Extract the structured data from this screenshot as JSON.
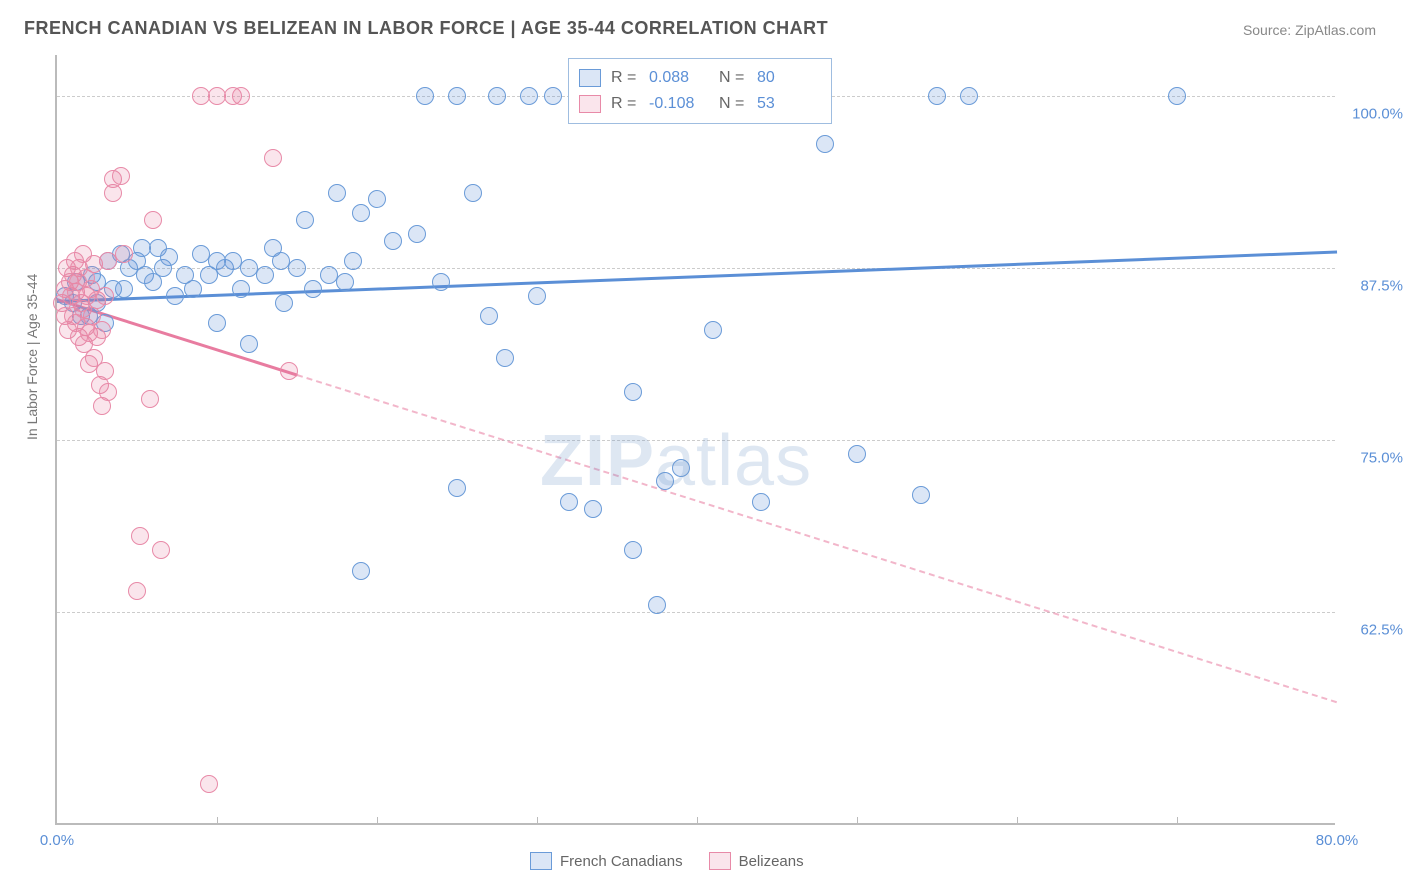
{
  "title": "FRENCH CANADIAN VS BELIZEAN IN LABOR FORCE | AGE 35-44 CORRELATION CHART",
  "source": "Source: ZipAtlas.com",
  "y_axis_label": "In Labor Force | Age 35-44",
  "watermark_bold": "ZIP",
  "watermark_light": "atlas",
  "chart": {
    "type": "scatter",
    "background_color": "#ffffff",
    "grid_color": "#cccccc",
    "axis_color": "#bbbbbb",
    "tick_label_color": "#5b8fd6",
    "tick_fontsize": 15,
    "title_fontsize": 18,
    "xlim": [
      0,
      80
    ],
    "ylim": [
      47,
      103
    ],
    "y_ticks": [
      62.5,
      75.0,
      87.5,
      100.0
    ],
    "y_tick_labels": [
      "62.5%",
      "75.0%",
      "87.5%",
      "100.0%"
    ],
    "x_ticks": [
      0,
      80
    ],
    "x_tick_labels": [
      "0.0%",
      "80.0%"
    ],
    "x_minor_ticks": [
      10,
      20,
      30,
      40,
      50,
      60,
      70
    ],
    "marker_radius": 9,
    "marker_stroke_width": 1.5,
    "marker_fill_opacity": 0.25,
    "trend_line_width": 3,
    "series": [
      {
        "name": "French Canadians",
        "color": "#5b8fd6",
        "fill": "rgba(91,143,214,0.22)",
        "stroke": "#6a9bd8",
        "R": "0.088",
        "N": "80",
        "trend": {
          "x1": 0,
          "y1": 85.2,
          "x2": 80,
          "y2": 88.8,
          "solid_until": 80
        },
        "points": [
          [
            0.5,
            85.5
          ],
          [
            1,
            85
          ],
          [
            1.2,
            86.5
          ],
          [
            1.5,
            84
          ],
          [
            2,
            84
          ],
          [
            2.2,
            87
          ],
          [
            2.5,
            86.5
          ],
          [
            2.5,
            85
          ],
          [
            3,
            83.5
          ],
          [
            3.2,
            88
          ],
          [
            3.5,
            86
          ],
          [
            4,
            88.5
          ],
          [
            4.2,
            86
          ],
          [
            4.5,
            87.5
          ],
          [
            5,
            88
          ],
          [
            5.3,
            89
          ],
          [
            5.5,
            87
          ],
          [
            6,
            86.5
          ],
          [
            6.3,
            89
          ],
          [
            6.6,
            87.5
          ],
          [
            7,
            88.3
          ],
          [
            7.4,
            85.5
          ],
          [
            8,
            87
          ],
          [
            8.5,
            86
          ],
          [
            9,
            88.5
          ],
          [
            9.5,
            87
          ],
          [
            10,
            88
          ],
          [
            10,
            83.5
          ],
          [
            10.5,
            87.5
          ],
          [
            11,
            88
          ],
          [
            11.5,
            86
          ],
          [
            12,
            87.5
          ],
          [
            12,
            82
          ],
          [
            13,
            87
          ],
          [
            13.5,
            89
          ],
          [
            14,
            88
          ],
          [
            14.2,
            85
          ],
          [
            15,
            87.5
          ],
          [
            15.5,
            91
          ],
          [
            16,
            86
          ],
          [
            17,
            87
          ],
          [
            17.5,
            93
          ],
          [
            18,
            86.5
          ],
          [
            18.5,
            88
          ],
          [
            19,
            65.5
          ],
          [
            19,
            91.5
          ],
          [
            20,
            92.5
          ],
          [
            21,
            89.5
          ],
          [
            22.5,
            90
          ],
          [
            23,
            100
          ],
          [
            24,
            86.5
          ],
          [
            25,
            71.5
          ],
          [
            25,
            100
          ],
          [
            26,
            93
          ],
          [
            27,
            84
          ],
          [
            27.5,
            100
          ],
          [
            28,
            81
          ],
          [
            29.5,
            100
          ],
          [
            30,
            85.5
          ],
          [
            31,
            100
          ],
          [
            32,
            70.5
          ],
          [
            32.5,
            100
          ],
          [
            33.5,
            70
          ],
          [
            34,
            100
          ],
          [
            35.5,
            100
          ],
          [
            36,
            78.5
          ],
          [
            36,
            67
          ],
          [
            37,
            100
          ],
          [
            37.5,
            63
          ],
          [
            38,
            72
          ],
          [
            39,
            73
          ],
          [
            41,
            83
          ],
          [
            44,
            70.5
          ],
          [
            46,
            100
          ],
          [
            48,
            96.5
          ],
          [
            50,
            74
          ],
          [
            54,
            71
          ],
          [
            55,
            100
          ],
          [
            57,
            100
          ],
          [
            70,
            100
          ]
        ]
      },
      {
        "name": "Belizeans",
        "color": "#e87ca0",
        "fill": "rgba(232,124,160,0.20)",
        "stroke": "#e88aa8",
        "R": "-0.108",
        "N": "53",
        "trend": {
          "x1": 0,
          "y1": 85.3,
          "x2": 80,
          "y2": 56,
          "solid_until": 15
        },
        "points": [
          [
            0.3,
            85
          ],
          [
            0.5,
            86
          ],
          [
            0.5,
            84
          ],
          [
            0.6,
            87.5
          ],
          [
            0.7,
            83
          ],
          [
            0.8,
            86.5
          ],
          [
            0.9,
            85.5
          ],
          [
            1,
            87
          ],
          [
            1,
            84
          ],
          [
            1.1,
            88
          ],
          [
            1.2,
            83.5
          ],
          [
            1.2,
            85.8
          ],
          [
            1.3,
            86.5
          ],
          [
            1.4,
            82.5
          ],
          [
            1.4,
            87.5
          ],
          [
            1.5,
            85
          ],
          [
            1.6,
            88.5
          ],
          [
            1.6,
            84.5
          ],
          [
            1.7,
            82
          ],
          [
            1.8,
            86.8
          ],
          [
            1.8,
            83.2
          ],
          [
            1.9,
            85.5
          ],
          [
            2,
            82.8
          ],
          [
            2,
            80.5
          ],
          [
            2.1,
            86
          ],
          [
            2.2,
            84
          ],
          [
            2.3,
            81
          ],
          [
            2.3,
            87.8
          ],
          [
            2.5,
            82.5
          ],
          [
            2.5,
            85.2
          ],
          [
            2.7,
            79
          ],
          [
            2.8,
            77.5
          ],
          [
            2.8,
            83
          ],
          [
            3,
            80
          ],
          [
            3,
            85.5
          ],
          [
            3.2,
            78.5
          ],
          [
            3.2,
            88
          ],
          [
            3.5,
            93
          ],
          [
            3.5,
            94
          ],
          [
            4,
            94.2
          ],
          [
            4.2,
            88.5
          ],
          [
            5,
            64
          ],
          [
            5.2,
            68
          ],
          [
            5.8,
            78
          ],
          [
            6,
            91
          ],
          [
            6.5,
            67
          ],
          [
            9,
            100
          ],
          [
            9.5,
            50
          ],
          [
            10,
            100
          ],
          [
            11,
            100
          ],
          [
            11.5,
            100
          ],
          [
            13.5,
            95.5
          ],
          [
            14.5,
            80
          ]
        ]
      }
    ]
  },
  "stats_box": {
    "rows": [
      {
        "swatch": 0,
        "r_label": "R =",
        "r_val": "0.088",
        "n_label": "N =",
        "n_val": "80"
      },
      {
        "swatch": 1,
        "r_label": "R =",
        "r_val": "-0.108",
        "n_label": "N =",
        "n_val": "53"
      }
    ]
  },
  "bottom_legend": [
    {
      "swatch": 0,
      "label": "French Canadians"
    },
    {
      "swatch": 1,
      "label": "Belizeans"
    }
  ]
}
